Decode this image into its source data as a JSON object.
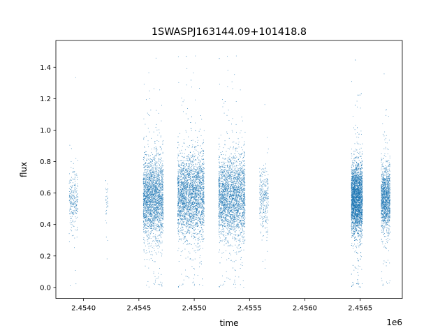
{
  "chart_data": {
    "type": "scatter",
    "title": "1SWASPJ163144.09+101418.8",
    "xlabel": "time",
    "ylabel": "flux",
    "x_offset_label": "1e6",
    "x_scale": 1000000,
    "xlim": [
      2.45375,
      2.45688
    ],
    "ylim": [
      -0.07,
      1.57
    ],
    "x_ticks": [
      2.454,
      2.4545,
      2.455,
      2.4555,
      2.456,
      2.4565
    ],
    "x_tick_labels": [
      "2.4540",
      "2.4545",
      "2.4550",
      "2.4555",
      "2.4560",
      "2.4565"
    ],
    "y_ticks": [
      0.0,
      0.2,
      0.4,
      0.6,
      0.8,
      1.0,
      1.2,
      1.4
    ],
    "y_tick_labels": [
      "0.0",
      "0.2",
      "0.4",
      "0.6",
      "0.8",
      "1.0",
      "1.2",
      "1.4"
    ],
    "grid": false,
    "marker_color": "#1f77b4",
    "series": [
      {
        "clusters": [
          {
            "x_center": 2.45391,
            "x_width": 4e-05,
            "y_center": 0.55,
            "y_spread": 0.09,
            "count": 260
          },
          {
            "x_center": 2.45421,
            "x_width": 1e-05,
            "y_center": 0.55,
            "y_spread": 0.08,
            "count": 35
          },
          {
            "x_center": 2.45463,
            "x_width": 9e-05,
            "y_center": 0.57,
            "y_spread": 0.13,
            "count": 2500
          },
          {
            "x_center": 2.45497,
            "x_width": 0.00012,
            "y_center": 0.58,
            "y_spread": 0.13,
            "count": 3000
          },
          {
            "x_center": 2.45534,
            "x_width": 0.00012,
            "y_center": 0.57,
            "y_spread": 0.13,
            "count": 2800
          },
          {
            "x_center": 2.45563,
            "x_width": 4e-05,
            "y_center": 0.56,
            "y_spread": 0.1,
            "count": 300
          },
          {
            "x_center": 2.45647,
            "x_width": 5e-05,
            "y_center": 0.56,
            "y_spread": 0.11,
            "count": 3500
          },
          {
            "x_center": 2.45673,
            "x_width": 4e-05,
            "y_center": 0.56,
            "y_spread": 0.1,
            "count": 1400
          }
        ]
      }
    ]
  }
}
